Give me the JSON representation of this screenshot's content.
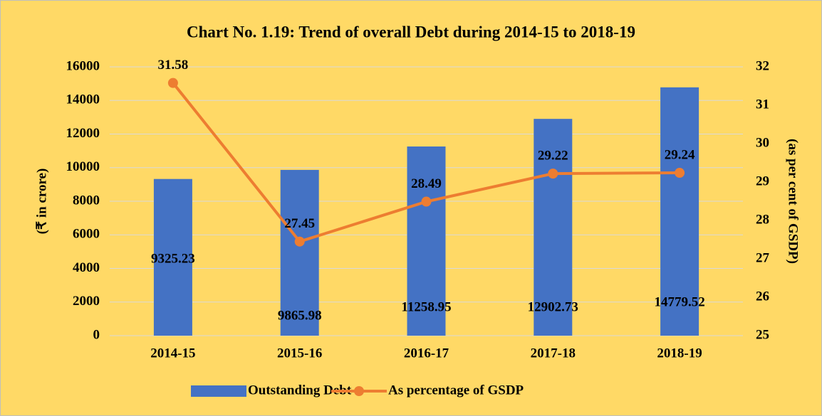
{
  "chart_data": {
    "type": "bar",
    "title": "Chart No. 1.19: Trend of overall Debt during 2014-15 to 2018-19",
    "y_label": "(₹ in crore)",
    "y2_label": "(as per cent of GSDP)",
    "categories": [
      "2014-15",
      "2015-16",
      "2016-17",
      "2017-18",
      "2018-19"
    ],
    "series": [
      {
        "name": "Outstanding Debt",
        "type": "bar",
        "color": "#4472c4",
        "values": [
          9325.23,
          9865.98,
          11258.95,
          12902.73,
          14779.52
        ]
      },
      {
        "name": "As percentage of GSDP",
        "type": "line",
        "axis": "y2",
        "color": "#ed7d31",
        "values": [
          31.58,
          27.45,
          28.49,
          29.22,
          29.24
        ]
      }
    ],
    "ylim": [
      0,
      16000
    ],
    "yticks": [
      0,
      2000,
      4000,
      6000,
      8000,
      10000,
      12000,
      14000,
      16000
    ],
    "y2lim": [
      25,
      32
    ],
    "y2ticks": [
      25,
      26,
      27,
      28,
      29,
      30,
      31,
      32
    ],
    "grid": true,
    "legend": "bottom"
  }
}
